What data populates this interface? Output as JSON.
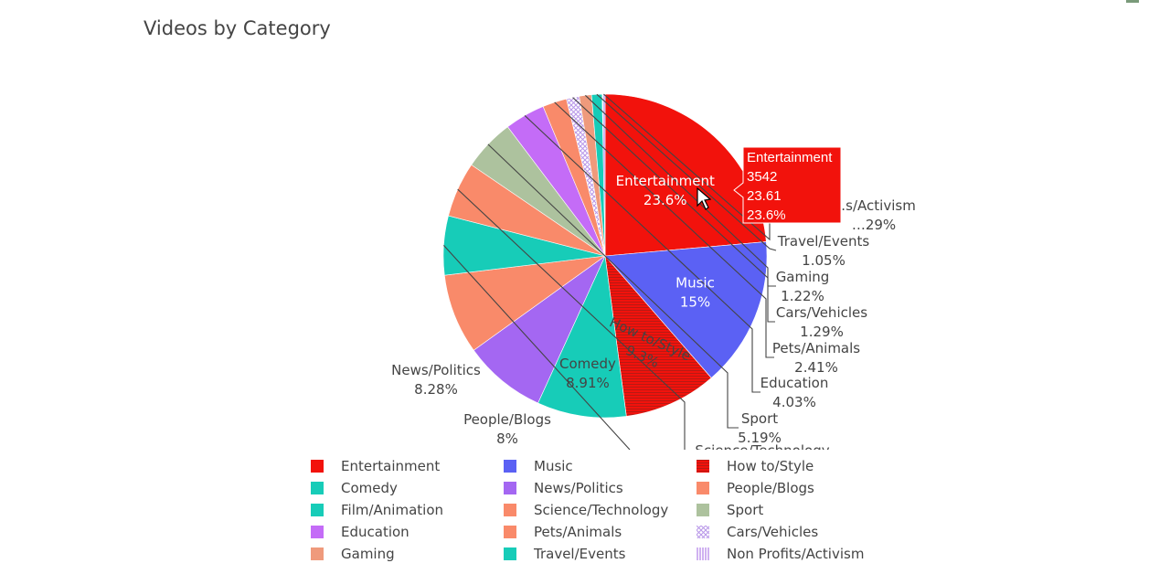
{
  "chart_data": {
    "type": "pie",
    "title": "Videos by Category",
    "slices": [
      {
        "label": "Entertainment",
        "percent": 23.6,
        "color": "#f2120c"
      },
      {
        "label": "Music",
        "percent": 15.0,
        "color": "#5b61f4"
      },
      {
        "label": "How to/Style",
        "percent": 9.3,
        "color": "#e8261c",
        "pattern": "horizontal-lines"
      },
      {
        "label": "Comedy",
        "percent": 8.91,
        "color": "#17ccb8"
      },
      {
        "label": "News/Politics",
        "percent": 8.28,
        "color": "#a467f2"
      },
      {
        "label": "People/Blogs",
        "percent": 8.0,
        "color": "#f98a6a"
      },
      {
        "label": "Film/Animation",
        "percent": 5.9,
        "color": "#17ccb8"
      },
      {
        "label": "Science/Technology",
        "percent": 5.53,
        "color": "#f98a6a"
      },
      {
        "label": "Sport",
        "percent": 5.19,
        "color": "#adc29e"
      },
      {
        "label": "Education",
        "percent": 4.03,
        "color": "#c46cf7"
      },
      {
        "label": "Pets/Animals",
        "percent": 2.41,
        "color": "#f98a6a"
      },
      {
        "label": "Cars/Vehicles",
        "percent": 1.29,
        "color": "#c8a8ee",
        "pattern": "diagonal-hatch"
      },
      {
        "label": "Gaming",
        "percent": 1.22,
        "color": "#ef9a7c"
      },
      {
        "label": "Travel/Events",
        "percent": 1.05,
        "color": "#17ccb8"
      },
      {
        "label": "Non Profits/Activism",
        "percent": 0.29,
        "color": "#c08ee8",
        "pattern": "vertical-lines"
      }
    ],
    "slice_labels": {
      "Entertainment": {
        "name": "Entertainment",
        "value": "23.6%"
      },
      "Music": {
        "name": "Music",
        "value": "15%"
      },
      "How to/Style": {
        "name": "How to/Style",
        "value": "9.3%"
      },
      "Comedy": {
        "name": "Comedy",
        "value": "8.91%"
      },
      "News/Politics": {
        "name": "News/Politics",
        "value": "8.28%"
      },
      "People/Blogs": {
        "name": "People/Blogs",
        "value": "8%"
      },
      "Sport": {
        "name": "Sport",
        "value": "5.19%"
      },
      "Education": {
        "name": "Education",
        "value": "4.03%"
      },
      "Pets/Animals": {
        "name": "Pets/Animals",
        "value": "2.41%"
      },
      "Cars/Vehicles": {
        "name": "Cars/Vehicles",
        "value": "1.29%"
      },
      "Gaming": {
        "name": "Gaming",
        "value": "1.22%"
      },
      "Travel/Events": {
        "name": "Travel/Events",
        "value": "1.05%"
      },
      "Non Profits/Activism": {
        "name": "…s/Activism",
        "value": "…29%"
      },
      "Science/Technology": {
        "name": "Science/Technology",
        "value": ""
      }
    },
    "tooltip": {
      "label": "Entertainment",
      "count": "3542",
      "value": "23.61",
      "percent": "23.6%",
      "color": "#f2120c"
    },
    "legend_position": "bottom"
  },
  "legend": {
    "items": [
      {
        "label": "Entertainment",
        "color": "#f2120c"
      },
      {
        "label": "Music",
        "color": "#5b61f4"
      },
      {
        "label": "How to/Style",
        "color": "#e8261c",
        "pattern": "horizontal-lines"
      },
      {
        "label": "Comedy",
        "color": "#17ccb8"
      },
      {
        "label": "News/Politics",
        "color": "#a467f2"
      },
      {
        "label": "People/Blogs",
        "color": "#f98a6a"
      },
      {
        "label": "Film/Animation",
        "color": "#17ccb8"
      },
      {
        "label": "Science/Technology",
        "color": "#f98a6a"
      },
      {
        "label": "Sport",
        "color": "#adc29e"
      },
      {
        "label": "Education",
        "color": "#c46cf7"
      },
      {
        "label": "Pets/Animals",
        "color": "#f98a6a"
      },
      {
        "label": "Cars/Vehicles",
        "color": "#c8a8ee",
        "pattern": "diagonal-hatch"
      },
      {
        "label": "Gaming",
        "color": "#ef9a7c"
      },
      {
        "label": "Travel/Events",
        "color": "#17ccb8"
      },
      {
        "label": "Non Profits/Activism",
        "color": "#c08ee8",
        "pattern": "vertical-lines"
      }
    ]
  }
}
